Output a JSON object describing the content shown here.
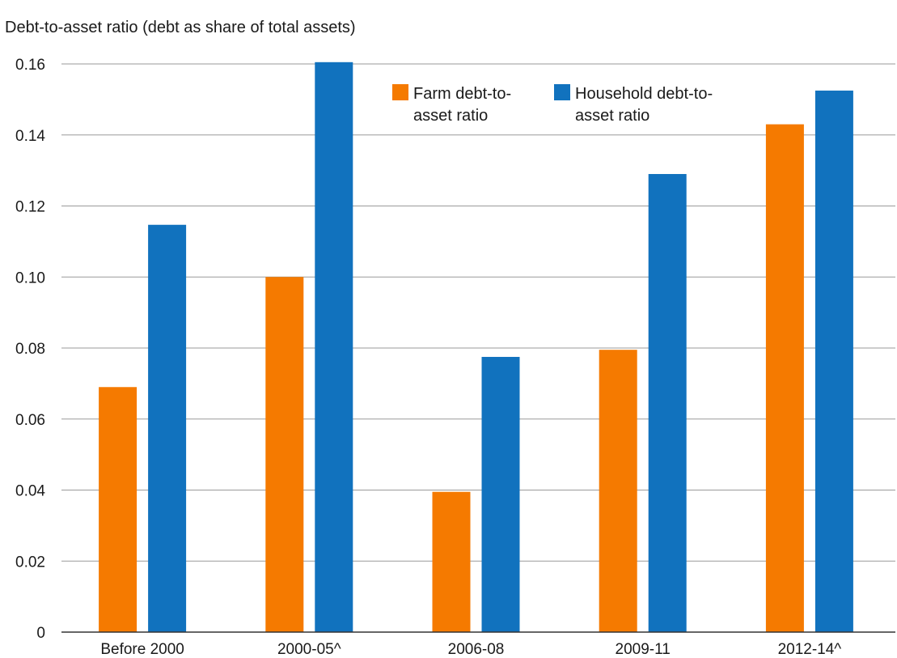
{
  "chart_data": {
    "type": "bar",
    "title": "",
    "xlabel": "",
    "ylabel": "Debt-to-asset ratio (debt as share of total assets)",
    "categories": [
      "Before 2000",
      "2000-05^",
      "2006-08",
      "2009-11",
      "2012-14^"
    ],
    "ylim": [
      0,
      0.16
    ],
    "yticks": [
      "0",
      "0.02",
      "0.04",
      "0.06",
      "0.08",
      "0.10",
      "0.12",
      "0.14",
      "0.16"
    ],
    "grid": true,
    "legend_position": "top-center",
    "series": [
      {
        "name": "Farm debt-to-asset ratio",
        "legend_lines": [
          "Farm debt-to-",
          "asset ratio"
        ],
        "color": "#f57a00",
        "values": [
          0.069,
          0.1,
          0.0395,
          0.0795,
          0.143
        ]
      },
      {
        "name": "Household debt-to-asset ratio",
        "legend_lines": [
          "Household debt-to-",
          "asset ratio"
        ],
        "color": "#1172be",
        "values": [
          0.1147,
          0.1605,
          0.0775,
          0.129,
          0.1525
        ]
      }
    ]
  }
}
